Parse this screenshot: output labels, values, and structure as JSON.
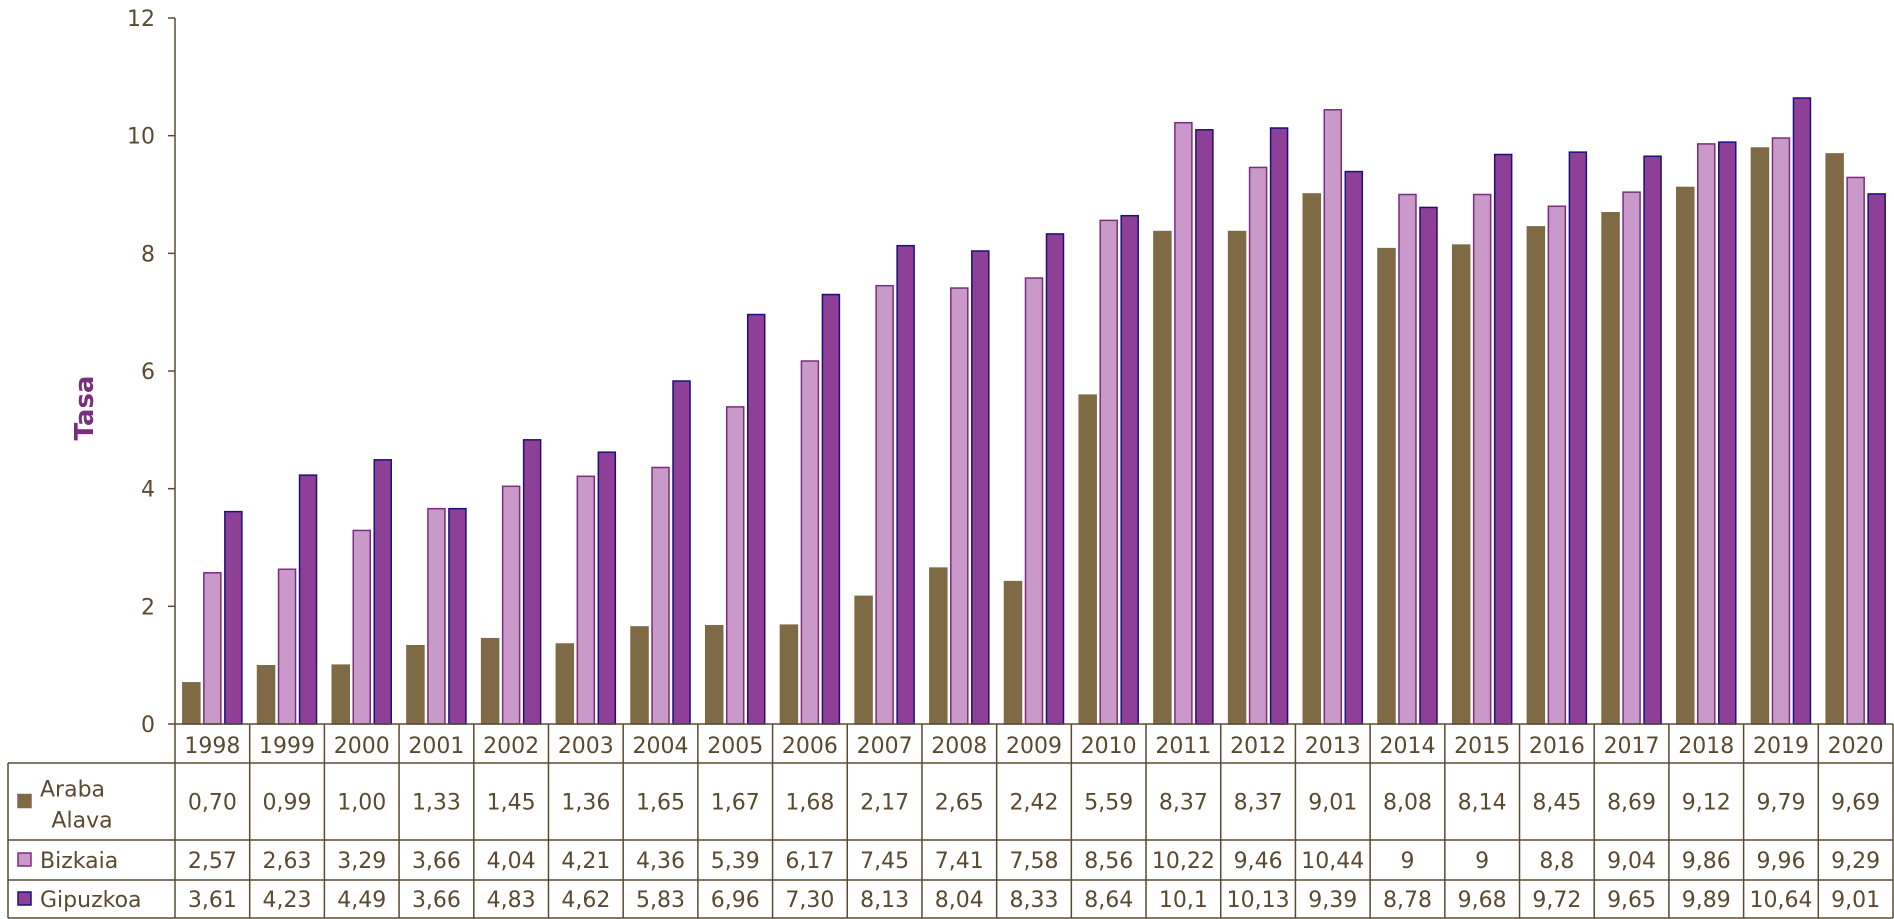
{
  "chart_data": {
    "type": "bar",
    "title": "",
    "xlabel": "",
    "ylabel": "Tasa",
    "ylim": [
      0,
      12
    ],
    "yticks": [
      "0",
      "2",
      "4",
      "6",
      "8",
      "10",
      "12"
    ],
    "categories": [
      "1998",
      "1999",
      "2000",
      "2001",
      "2002",
      "2003",
      "2004",
      "2005",
      "2006",
      "2007",
      "2008",
      "2009",
      "2010",
      "2011",
      "2012",
      "2013",
      "2014",
      "2015",
      "2016",
      "2017",
      "2018",
      "2019",
      "2020"
    ],
    "series": [
      {
        "name": "Araba",
        "name_line2": "Alava",
        "color": "#7f6a46",
        "edge": "#7f6a46",
        "values": [
          0.7,
          0.99,
          1.0,
          1.33,
          1.45,
          1.36,
          1.65,
          1.67,
          1.68,
          2.17,
          2.65,
          2.42,
          5.59,
          8.37,
          8.37,
          9.01,
          8.08,
          8.14,
          8.45,
          8.69,
          9.12,
          9.79,
          9.69
        ],
        "labels": [
          "0,70",
          "0,99",
          "1,00",
          "1,33",
          "1,45",
          "1,36",
          "1,65",
          "1,67",
          "1,68",
          "2,17",
          "2,65",
          "2,42",
          "5,59",
          "8,37",
          "8,37",
          "9,01",
          "8,08",
          "8,14",
          "8,45",
          "8,69",
          "9,12",
          "9,79",
          "9,69"
        ]
      },
      {
        "name": "Bizkaia",
        "color": "#c99ac9",
        "edge": "#7b2d7f",
        "values": [
          2.57,
          2.63,
          3.29,
          3.66,
          4.04,
          4.21,
          4.36,
          5.39,
          6.17,
          7.45,
          7.41,
          7.58,
          8.56,
          10.22,
          9.46,
          10.44,
          9,
          9,
          8.8,
          9.04,
          9.86,
          9.96,
          9.29
        ],
        "labels": [
          "2,57",
          "2,63",
          "3,29",
          "3,66",
          "4,04",
          "4,21",
          "4,36",
          "5,39",
          "6,17",
          "7,45",
          "7,41",
          "7,58",
          "8,56",
          "10,22",
          "9,46",
          "10,44",
          "9",
          "9",
          "8,8",
          "9,04",
          "9,86",
          "9,96",
          "9,29"
        ]
      },
      {
        "name": "Gipuzkoa",
        "color": "#8e3f96",
        "edge": "#1a1080",
        "values": [
          3.61,
          4.23,
          4.49,
          3.66,
          4.83,
          4.62,
          5.83,
          6.96,
          7.3,
          8.13,
          8.04,
          8.33,
          8.64,
          10.1,
          10.13,
          9.39,
          8.78,
          9.68,
          9.72,
          9.65,
          9.89,
          10.64,
          9.01
        ],
        "labels": [
          "3,61",
          "4,23",
          "4,49",
          "3,66",
          "4,83",
          "4,62",
          "5,83",
          "6,96",
          "7,30",
          "8,13",
          "8,04",
          "8,33",
          "8,64",
          "10,1",
          "10,13",
          "9,39",
          "8,78",
          "9,68",
          "9,72",
          "9,65",
          "9,89",
          "10,64",
          "9,01"
        ]
      }
    ],
    "legend": "data-table-left",
    "grid": false
  }
}
